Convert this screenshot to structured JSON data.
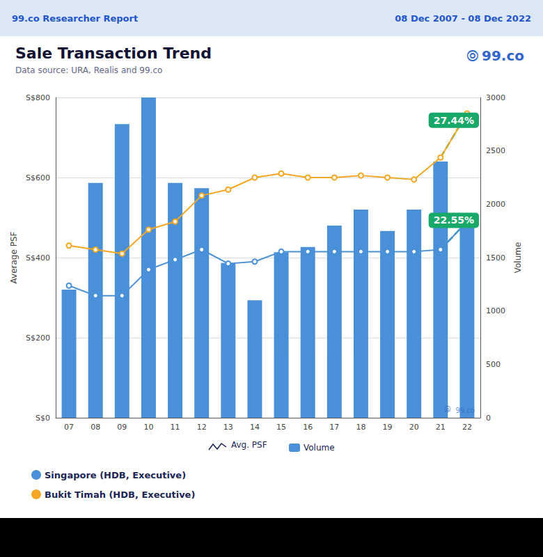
{
  "chart_data": {
    "type": "bar",
    "header_left": "99.co Researcher Report",
    "header_right": "08 Dec 2007 - 08 Dec 2022",
    "title": "Sale Transaction Trend",
    "subtitle": "Data source: URA, Realis and 99.co",
    "logo": "99.co",
    "logo_symbol": "⦾",
    "watermark_text": "99.co",
    "psf_key": "Avg. PSF",
    "categories": [
      "07",
      "08",
      "09",
      "10",
      "11",
      "12",
      "13",
      "14",
      "15",
      "16",
      "17",
      "18",
      "19",
      "20",
      "21",
      "22"
    ],
    "series": [
      {
        "name": "Volume",
        "type": "bar",
        "axis": "y2",
        "color": "#4a90d9",
        "values": [
          1200,
          2200,
          2750,
          3000,
          2200,
          2150,
          1450,
          1100,
          1550,
          1600,
          1800,
          1950,
          1750,
          1950,
          2400,
          1850
        ]
      },
      {
        "name": "Singapore (HDB, Executive)",
        "type": "line",
        "color": "#4a90d9",
        "marker": "circle",
        "values": [
          330,
          305,
          305,
          370,
          395,
          420,
          385,
          390,
          415,
          415,
          415,
          415,
          415,
          415,
          420,
          490
        ]
      },
      {
        "name": "Bukit Timah (HDB, Executive)",
        "type": "line",
        "color": "#f5a623",
        "marker": "circle",
        "values": [
          430,
          420,
          410,
          470,
          490,
          555,
          570,
          600,
          610,
          600,
          600,
          605,
          600,
          595,
          650,
          760
        ]
      }
    ],
    "ylabel": "Average PSF",
    "y2label": "Volume",
    "ylim": [
      0,
      800
    ],
    "yticks": [
      {
        "value": 0,
        "label": "S$0"
      },
      {
        "value": 200,
        "label": "S$200"
      },
      {
        "value": 400,
        "label": "S$400"
      },
      {
        "value": 600,
        "label": "S$600"
      },
      {
        "value": 800,
        "label": "S$800"
      }
    ],
    "y2lim": [
      0,
      3000
    ],
    "y2ticks": [
      0,
      500,
      1000,
      1500,
      2000,
      2500,
      3000
    ],
    "grid": true,
    "annotations": [
      {
        "text": "27.44%",
        "series": "Bukit Timah (HDB, Executive)",
        "color": "#18a96a"
      },
      {
        "text": "22.55%",
        "series": "Singapore (HDB, Executive)",
        "color": "#18a96a"
      }
    ]
  }
}
